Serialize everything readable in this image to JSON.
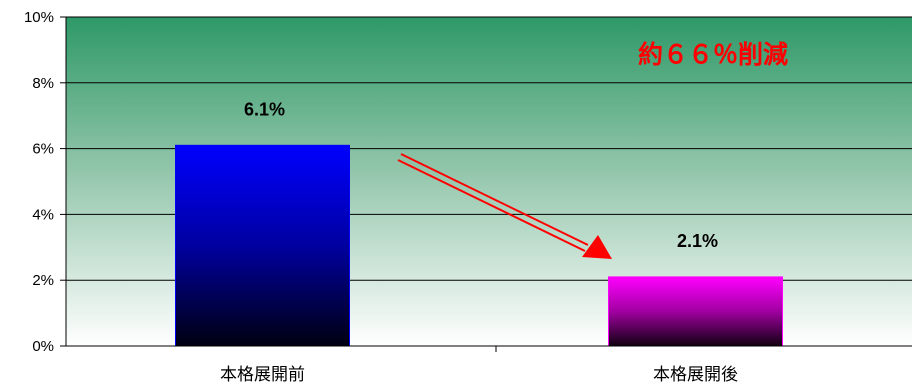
{
  "chart_data": {
    "type": "bar",
    "categories": [
      "本格展開前",
      "本格展開後"
    ],
    "values": [
      6.1,
      2.1
    ],
    "data_labels": [
      "6.1%",
      "2.1%"
    ],
    "ylim": [
      0,
      10
    ],
    "yticks": [
      0,
      2,
      4,
      6,
      8,
      10
    ],
    "ytick_labels": [
      "0%",
      "2%",
      "4%",
      "6%",
      "8%",
      "10%"
    ],
    "title": "",
    "xlabel": "",
    "ylabel": "",
    "grid": true,
    "legend": "none",
    "annotation": "約６６％削減",
    "colors": {
      "bar1_top": "#0000ff",
      "bar1_bottom": "#000010",
      "bar2_top": "#ff00ff",
      "bar2_bottom": "#100010",
      "bg_top": "#2e9968",
      "bg_bottom": "#ffffff",
      "annotation": "#ff0000",
      "arrow": "#ff0000"
    }
  }
}
